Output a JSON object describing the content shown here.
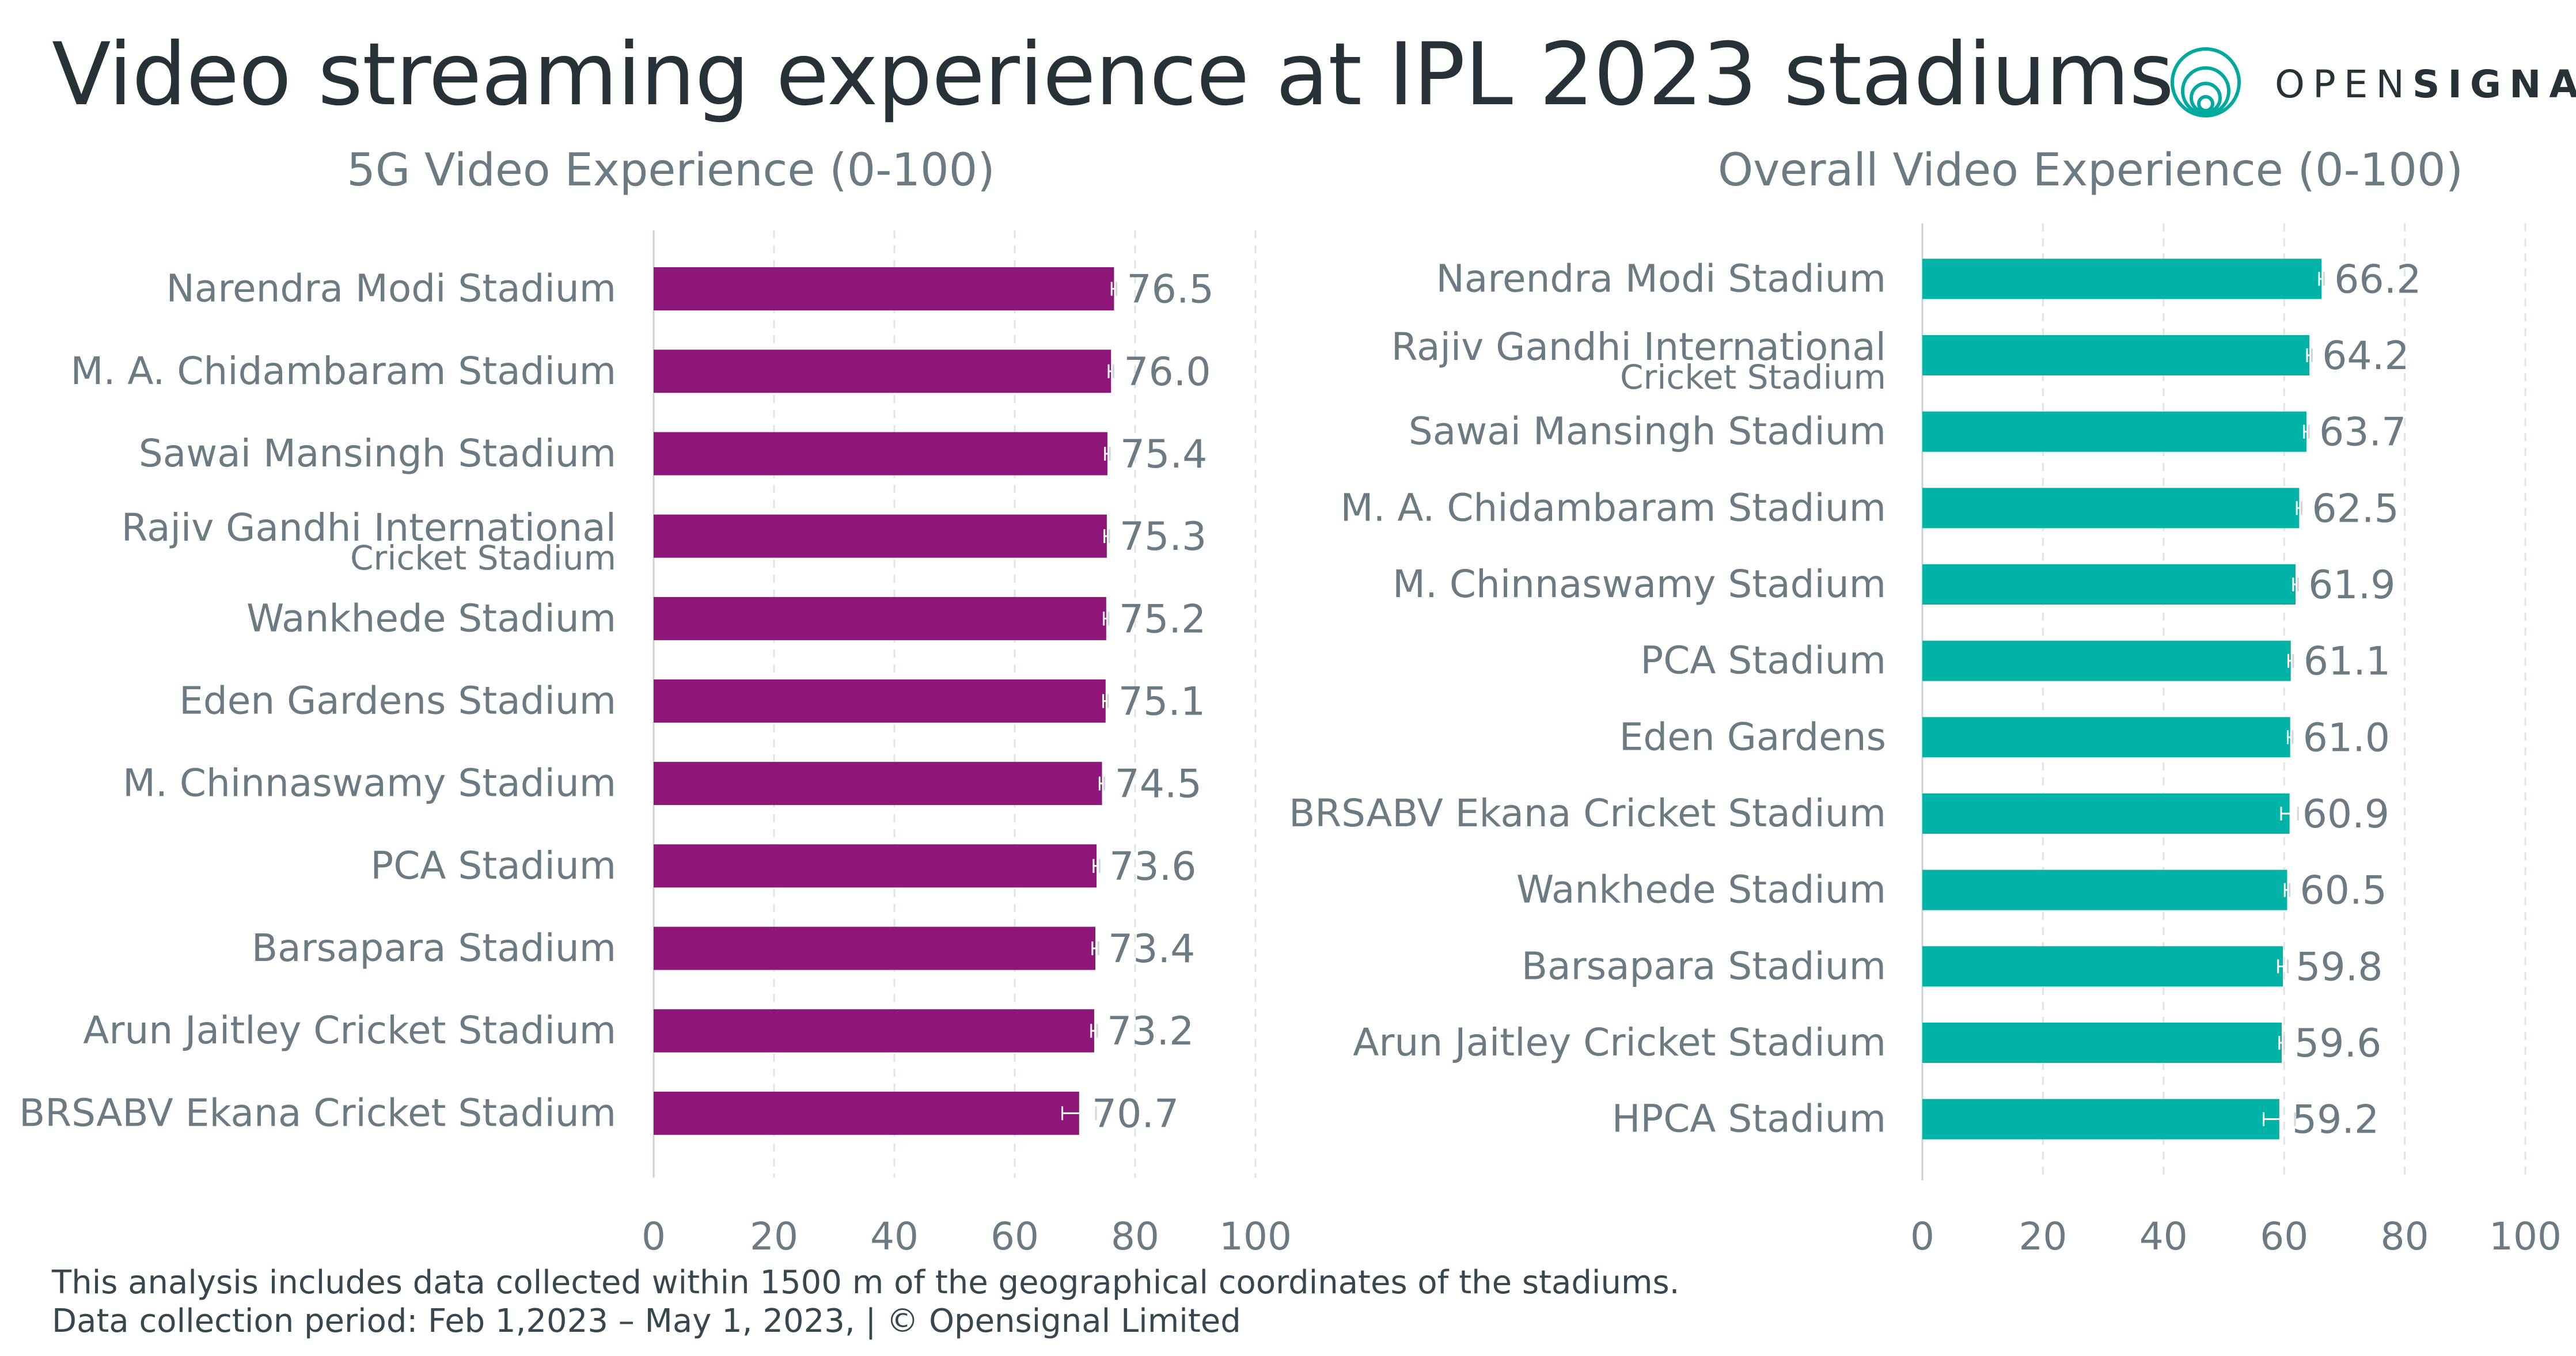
{
  "title": "Video streaming experience at IPL 2023 stadiums",
  "logo": {
    "text_light": "OPEN",
    "text_bold": "SIGNAL"
  },
  "footnotes": [
    "This analysis includes data collected within 1500 m of the geographical coordinates of the stadiums.",
    "Data collection period: Feb 1,2023 – May 1, 2023, | © Opensignal Limited"
  ],
  "chart_data": [
    {
      "type": "bar",
      "orientation": "horizontal",
      "title": "5G Video Experience (0-100)",
      "color": "#8e1678",
      "xlim": [
        0,
        100
      ],
      "xticks": [
        0,
        20,
        40,
        60,
        80,
        100
      ],
      "grid": "vertical dashed",
      "categories": [
        "Narendra Modi Stadium",
        "M. A. Chidambaram Stadium",
        "Sawai Mansingh Stadium",
        "Rajiv Gandhi International\nCricket Stadium",
        "Wankhede Stadium",
        "Eden Gardens Stadium",
        "M. Chinnaswamy Stadium",
        "PCA Stadium",
        "Barsapara Stadium",
        "Arun Jaitley Cricket Stadium",
        "BRSABV Ekana Cricket Stadium"
      ],
      "values": [
        76.5,
        76.0,
        75.4,
        75.3,
        75.2,
        75.1,
        74.5,
        73.6,
        73.4,
        73.2,
        70.7
      ],
      "labels": [
        "76.5",
        "76.0",
        "75.4",
        "75.3",
        "75.2",
        "75.1",
        "74.5",
        "73.6",
        "73.4",
        "73.2",
        "70.7"
      ],
      "error": [
        0.4,
        0.4,
        0.4,
        0.4,
        0.4,
        0.4,
        0.4,
        0.5,
        0.5,
        0.5,
        2.8
      ]
    },
    {
      "type": "bar",
      "orientation": "horizontal",
      "title": "Overall Video Experience (0-100)",
      "color": "#00b3a6",
      "xlim": [
        0,
        100
      ],
      "xticks": [
        0,
        20,
        40,
        60,
        80,
        100
      ],
      "grid": "vertical dashed",
      "categories": [
        "Narendra Modi Stadium",
        "Rajiv Gandhi International\nCricket Stadium",
        "Sawai Mansingh Stadium",
        "M. A. Chidambaram Stadium",
        "M. Chinnaswamy Stadium",
        "PCA Stadium",
        "Eden Gardens",
        "BRSABV Ekana Cricket Stadium",
        "Wankhede Stadium",
        "Barsapara Stadium",
        "Arun Jaitley Cricket Stadium",
        "HPCA Stadium"
      ],
      "values": [
        66.2,
        64.2,
        63.7,
        62.5,
        61.9,
        61.1,
        61.0,
        60.9,
        60.5,
        59.8,
        59.6,
        59.2
      ],
      "labels": [
        "66.2",
        "64.2",
        "63.7",
        "62.5",
        "61.9",
        "61.1",
        "61.0",
        "60.9",
        "60.5",
        "59.8",
        "59.6",
        "59.2"
      ],
      "error": [
        0.4,
        0.4,
        0.4,
        0.4,
        0.4,
        0.4,
        0.4,
        1.4,
        0.4,
        0.8,
        0.4,
        2.6
      ]
    }
  ]
}
